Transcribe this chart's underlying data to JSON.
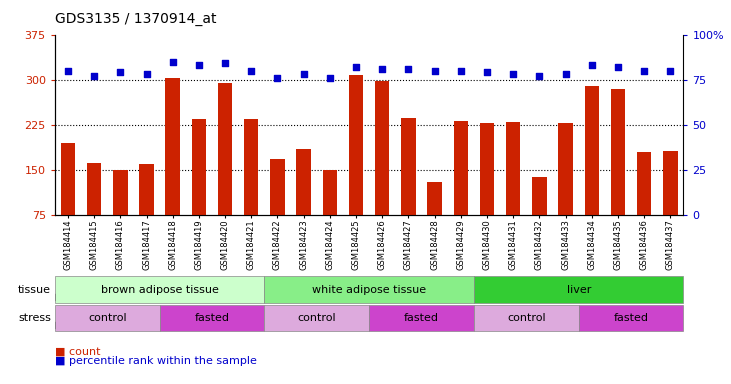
{
  "title": "GDS3135 / 1370914_at",
  "samples": [
    "GSM184414",
    "GSM184415",
    "GSM184416",
    "GSM184417",
    "GSM184418",
    "GSM184419",
    "GSM184420",
    "GSM184421",
    "GSM184422",
    "GSM184423",
    "GSM184424",
    "GSM184425",
    "GSM184426",
    "GSM184427",
    "GSM184428",
    "GSM184429",
    "GSM184430",
    "GSM184431",
    "GSM184432",
    "GSM184433",
    "GSM184434",
    "GSM184435",
    "GSM184436",
    "GSM184437"
  ],
  "counts": [
    195,
    162,
    150,
    160,
    303,
    235,
    295,
    235,
    168,
    184,
    150,
    307,
    297,
    237,
    130,
    232,
    228,
    230,
    138,
    228,
    289,
    285,
    180,
    182
  ],
  "percentile_ranks": [
    80,
    77,
    79,
    78,
    85,
    83,
    84,
    80,
    76,
    78,
    76,
    82,
    81,
    81,
    80,
    80,
    79,
    78,
    77,
    78,
    83,
    82,
    80,
    80
  ],
  "bar_color": "#cc2200",
  "dot_color": "#0000cc",
  "ylim_left": [
    75,
    375
  ],
  "yticks_left": [
    75,
    150,
    225,
    300,
    375
  ],
  "ylim_right": [
    0,
    100
  ],
  "yticks_right": [
    0,
    25,
    50,
    75,
    100
  ],
  "ytick_right_labels": [
    "0",
    "25",
    "50",
    "75",
    "100%"
  ],
  "tissue_groups": [
    {
      "label": "brown adipose tissue",
      "start": 0,
      "end": 8,
      "color": "#ccffcc"
    },
    {
      "label": "white adipose tissue",
      "start": 8,
      "end": 16,
      "color": "#88ee88"
    },
    {
      "label": "liver",
      "start": 16,
      "end": 24,
      "color": "#33cc33"
    }
  ],
  "stress_groups": [
    {
      "label": "control",
      "start": 0,
      "end": 4,
      "color": "#ddaadd"
    },
    {
      "label": "fasted",
      "start": 4,
      "end": 8,
      "color": "#cc44cc"
    },
    {
      "label": "control",
      "start": 8,
      "end": 12,
      "color": "#ddaadd"
    },
    {
      "label": "fasted",
      "start": 12,
      "end": 16,
      "color": "#cc44cc"
    },
    {
      "label": "control",
      "start": 16,
      "end": 20,
      "color": "#ddaadd"
    },
    {
      "label": "fasted",
      "start": 20,
      "end": 24,
      "color": "#cc44cc"
    }
  ],
  "background_color": "#ffffff",
  "hline_vals": [
    150,
    225,
    300
  ],
  "hline_color": "black",
  "hline_style": ":"
}
